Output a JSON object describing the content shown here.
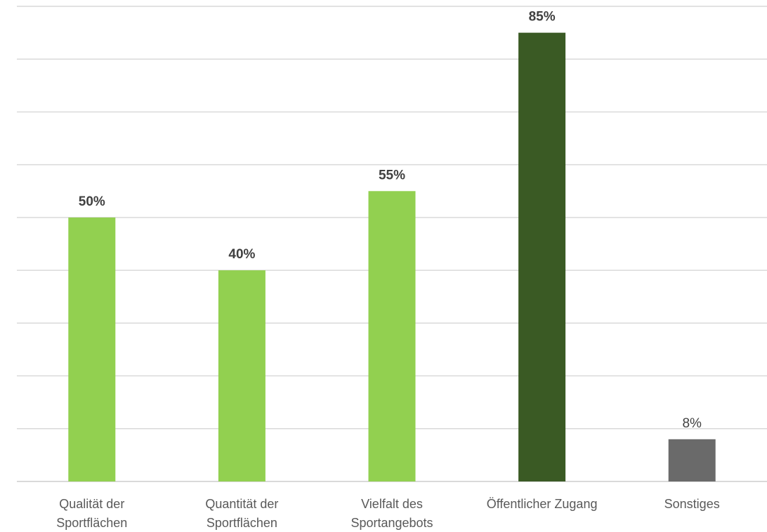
{
  "chart_data": {
    "type": "bar",
    "categories": [
      [
        "Qualität der",
        "Sportflächen"
      ],
      [
        "Quantität der",
        "Sportflächen"
      ],
      [
        "Vielfalt des",
        "Sportangebots"
      ],
      [
        "Öffentlicher Zugang"
      ],
      [
        "Sonstiges"
      ]
    ],
    "values": [
      50,
      40,
      55,
      85,
      8
    ],
    "data_labels": [
      "50%",
      "40%",
      "55%",
      "85%",
      "8%"
    ],
    "bold_labels": [
      true,
      true,
      true,
      true,
      false
    ],
    "colors": [
      "#92d050",
      "#92d050",
      "#92d050",
      "#3a5a24",
      "#6a6a6a"
    ],
    "ylim": [
      0,
      90
    ],
    "grid_step": 10,
    "grid": true,
    "title": "",
    "xlabel": "",
    "ylabel": ""
  }
}
